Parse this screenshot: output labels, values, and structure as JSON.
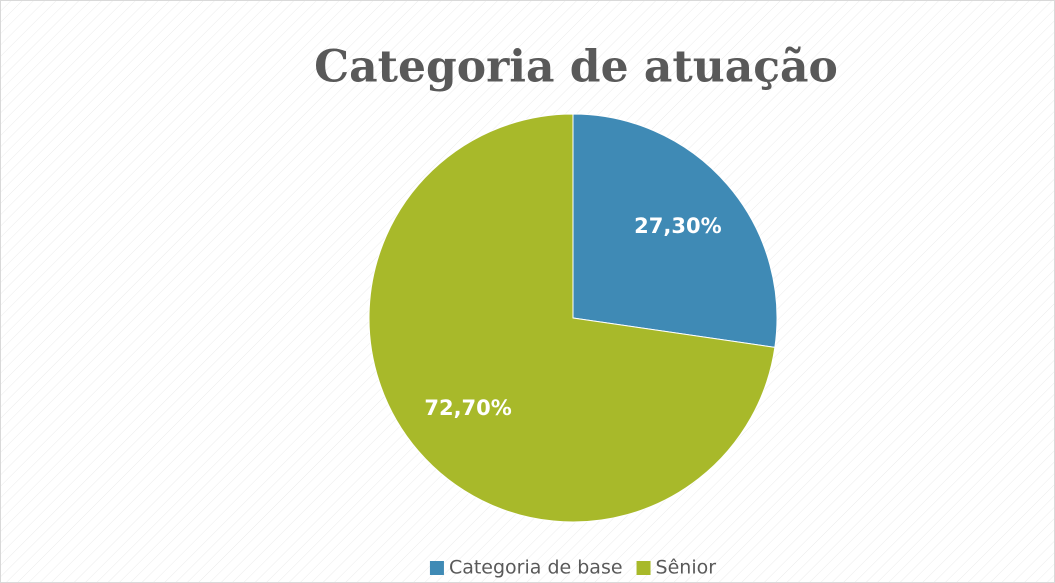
{
  "chart_data": {
    "type": "pie",
    "title": "Categoria de atuação",
    "categories": [
      "Categoria de base",
      "Sênior"
    ],
    "values": [
      27.3,
      72.7
    ],
    "value_labels": [
      "27,30%",
      "72,70%"
    ],
    "colors": [
      "#3f8ab5",
      "#a8b92a"
    ],
    "legend": "bottom"
  }
}
